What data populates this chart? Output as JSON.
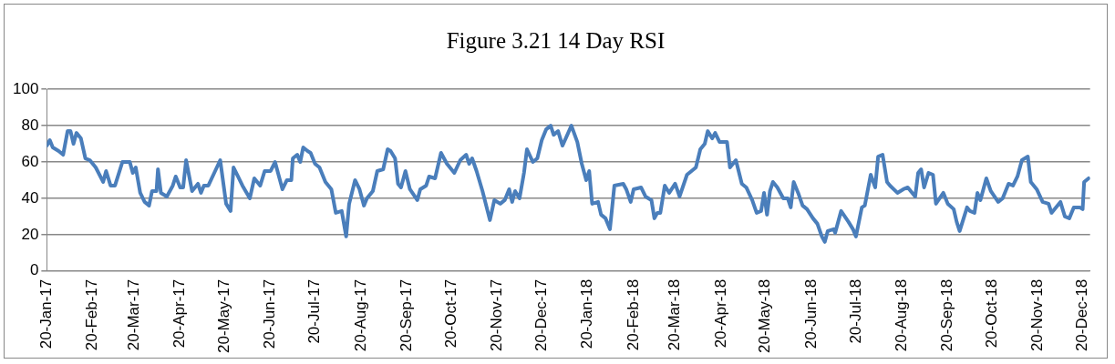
{
  "chart_data": {
    "type": "line",
    "title": "Figure 3.21 14 Day RSI",
    "x": [
      "2017-01-20",
      "2017-01-22",
      "2017-01-24",
      "2017-01-28",
      "2017-01-31",
      "2017-02-03",
      "2017-02-05",
      "2017-02-07",
      "2017-02-09",
      "2017-02-12",
      "2017-02-15",
      "2017-02-18",
      "2017-02-22",
      "2017-02-27",
      "2017-03-01",
      "2017-03-04",
      "2017-03-07",
      "2017-03-12",
      "2017-03-17",
      "2017-03-19",
      "2017-03-21",
      "2017-03-24",
      "2017-03-27",
      "2017-03-30",
      "2017-04-01",
      "2017-04-04",
      "2017-04-05",
      "2017-04-07",
      "2017-04-11",
      "2017-04-15",
      "2017-04-17",
      "2017-04-20",
      "2017-04-22",
      "2017-04-24",
      "2017-04-28",
      "2017-05-02",
      "2017-05-04",
      "2017-05-06",
      "2017-05-09",
      "2017-05-13",
      "2017-05-17",
      "2017-05-21",
      "2017-05-24",
      "2017-05-26",
      "2017-05-29",
      "2017-06-01",
      "2017-06-06",
      "2017-06-09",
      "2017-06-13",
      "2017-06-16",
      "2017-06-20",
      "2017-06-23",
      "2017-06-28",
      "2017-07-01",
      "2017-07-04",
      "2017-07-05",
      "2017-07-08",
      "2017-07-10",
      "2017-07-12",
      "2017-07-15",
      "2017-07-17",
      "2017-07-20",
      "2017-07-23",
      "2017-07-27",
      "2017-07-31",
      "2017-08-03",
      "2017-08-07",
      "2017-08-10",
      "2017-08-12",
      "2017-08-16",
      "2017-08-19",
      "2017-08-22",
      "2017-08-24",
      "2017-08-28",
      "2017-08-31",
      "2017-09-04",
      "2017-09-07",
      "2017-09-09",
      "2017-09-12",
      "2017-09-14",
      "2017-09-16",
      "2017-09-19",
      "2017-09-22",
      "2017-09-27",
      "2017-09-29",
      "2017-10-03",
      "2017-10-05",
      "2017-10-09",
      "2017-10-13",
      "2017-10-17",
      "2017-10-22",
      "2017-10-26",
      "2017-10-30",
      "2017-11-01",
      "2017-11-03",
      "2017-11-06",
      "2017-11-10",
      "2017-11-15",
      "2017-11-18",
      "2017-11-22",
      "2017-11-25",
      "2017-11-28",
      "2017-11-30",
      "2017-12-02",
      "2017-12-05",
      "2017-12-08",
      "2017-12-10",
      "2017-12-14",
      "2017-12-17",
      "2017-12-20",
      "2017-12-23",
      "2017-12-26",
      "2017-12-28",
      "2017-12-31",
      "2018-01-03",
      "2018-01-09",
      "2018-01-13",
      "2018-01-16",
      "2018-01-19",
      "2018-01-21",
      "2018-01-23",
      "2018-01-27",
      "2018-01-29",
      "2018-02-01",
      "2018-02-04",
      "2018-02-07",
      "2018-02-13",
      "2018-02-15",
      "2018-02-18",
      "2018-02-20",
      "2018-02-25",
      "2018-02-28",
      "2018-03-04",
      "2018-03-06",
      "2018-03-08",
      "2018-03-10",
      "2018-03-13",
      "2018-03-16",
      "2018-03-20",
      "2018-03-23",
      "2018-03-28",
      "2018-04-03",
      "2018-04-06",
      "2018-04-09",
      "2018-04-11",
      "2018-04-14",
      "2018-04-16",
      "2018-04-19",
      "2018-04-24",
      "2018-04-26",
      "2018-04-30",
      "2018-05-04",
      "2018-05-07",
      "2018-05-11",
      "2018-05-14",
      "2018-05-17",
      "2018-05-19",
      "2018-05-21",
      "2018-05-23",
      "2018-05-25",
      "2018-05-28",
      "2018-06-01",
      "2018-06-04",
      "2018-06-06",
      "2018-06-08",
      "2018-06-11",
      "2018-06-14",
      "2018-06-17",
      "2018-06-21",
      "2018-06-24",
      "2018-06-27",
      "2018-06-29",
      "2018-07-01",
      "2018-07-05",
      "2018-07-06",
      "2018-07-10",
      "2018-07-15",
      "2018-07-18",
      "2018-07-20",
      "2018-07-24",
      "2018-07-26",
      "2018-07-30",
      "2018-08-02",
      "2018-08-04",
      "2018-08-07",
      "2018-08-10",
      "2018-08-12",
      "2018-08-17",
      "2018-08-21",
      "2018-08-24",
      "2018-08-29",
      "2018-08-31",
      "2018-09-02",
      "2018-09-04",
      "2018-09-07",
      "2018-09-10",
      "2018-09-12",
      "2018-09-17",
      "2018-09-20",
      "2018-09-24",
      "2018-09-26",
      "2018-09-28",
      "2018-10-03",
      "2018-10-05",
      "2018-10-08",
      "2018-10-10",
      "2018-10-12",
      "2018-10-16",
      "2018-10-19",
      "2018-10-24",
      "2018-10-27",
      "2018-10-31",
      "2018-11-03",
      "2018-11-06",
      "2018-11-09",
      "2018-11-13",
      "2018-11-15",
      "2018-11-19",
      "2018-11-23",
      "2018-11-27",
      "2018-11-29",
      "2018-12-05",
      "2018-12-08",
      "2018-12-11",
      "2018-12-14",
      "2018-12-18",
      "2018-12-20",
      "2018-12-21",
      "2018-12-24"
    ],
    "values": [
      69,
      72,
      68,
      66,
      64,
      77,
      77,
      70,
      76,
      73,
      62,
      61,
      57,
      49,
      55,
      47,
      47,
      60,
      60,
      54,
      57,
      43,
      38,
      36,
      44,
      44,
      56,
      43,
      41,
      47,
      52,
      46,
      46,
      61,
      44,
      48,
      43,
      47,
      47,
      54,
      61,
      37,
      33,
      57,
      52,
      47,
      40,
      51,
      47,
      55,
      55,
      60,
      45,
      50,
      50,
      62,
      64,
      60,
      68,
      66,
      65,
      59,
      57,
      49,
      45,
      32,
      33,
      19,
      37,
      50,
      45,
      36,
      40,
      44,
      55,
      56,
      67,
      66,
      62,
      48,
      46,
      55,
      45,
      39,
      45,
      47,
      52,
      51,
      65,
      59,
      54,
      61,
      64,
      59,
      62,
      55,
      44,
      28,
      39,
      37,
      39,
      45,
      38,
      44,
      40,
      54,
      67,
      60,
      62,
      72,
      78,
      80,
      75,
      77,
      69,
      80,
      71,
      59,
      50,
      55,
      37,
      38,
      31,
      29,
      23,
      47,
      48,
      45,
      38,
      45,
      46,
      41,
      39,
      29,
      32,
      32,
      47,
      43,
      48,
      41,
      53,
      57,
      67,
      70,
      77,
      73,
      76,
      71,
      71,
      57,
      61,
      48,
      46,
      39,
      32,
      33,
      43,
      31,
      44,
      49,
      46,
      40,
      40,
      35,
      49,
      43,
      36,
      34,
      29,
      26,
      19,
      16,
      22,
      23,
      21,
      33,
      27,
      23,
      19,
      35,
      36,
      53,
      46,
      63,
      64,
      49,
      47,
      43,
      45,
      46,
      41,
      54,
      56,
      46,
      54,
      53,
      37,
      43,
      37,
      34,
      27,
      22,
      35,
      33,
      32,
      43,
      39,
      51,
      44,
      38,
      40,
      48,
      47,
      52,
      61,
      63,
      49,
      45,
      38,
      37,
      32,
      38,
      30,
      29,
      35,
      35,
      34,
      49,
      51
    ],
    "color": "#4a7ebb",
    "xlim": [
      "2017-01-20",
      "2018-12-25"
    ],
    "xticks": [
      {
        "value": "2017-01-20",
        "label": "20-Jan-17"
      },
      {
        "value": "2017-02-20",
        "label": "20-Feb-17"
      },
      {
        "value": "2017-03-20",
        "label": "20-Mar-17"
      },
      {
        "value": "2017-04-20",
        "label": "20-Apr-17"
      },
      {
        "value": "2017-05-20",
        "label": "20-May-17"
      },
      {
        "value": "2017-06-20",
        "label": "20-Jun-17"
      },
      {
        "value": "2017-07-20",
        "label": "20-Jul-17"
      },
      {
        "value": "2017-08-20",
        "label": "20-Aug-17"
      },
      {
        "value": "2017-09-20",
        "label": "20-Sep-17"
      },
      {
        "value": "2017-10-20",
        "label": "20-Oct-17"
      },
      {
        "value": "2017-11-20",
        "label": "20-Nov-17"
      },
      {
        "value": "2017-12-20",
        "label": "20-Dec-17"
      },
      {
        "value": "2018-01-20",
        "label": "20-Jan-18"
      },
      {
        "value": "2018-02-20",
        "label": "20-Feb-18"
      },
      {
        "value": "2018-03-20",
        "label": "20-Mar-18"
      },
      {
        "value": "2018-04-20",
        "label": "20-Apr-18"
      },
      {
        "value": "2018-05-20",
        "label": "20-May-18"
      },
      {
        "value": "2018-06-20",
        "label": "20-Jun-18"
      },
      {
        "value": "2018-07-20",
        "label": "20-Jul-18"
      },
      {
        "value": "2018-08-20",
        "label": "20-Aug-18"
      },
      {
        "value": "2018-09-20",
        "label": "20-Sep-18"
      },
      {
        "value": "2018-10-20",
        "label": "20-Oct-18"
      },
      {
        "value": "2018-11-20",
        "label": "20-Nov-18"
      },
      {
        "value": "2018-12-20",
        "label": "20-Dec-18"
      }
    ],
    "ylim": [
      0,
      100
    ],
    "yticks": [
      0,
      20,
      40,
      60,
      80,
      100
    ],
    "grid": "y",
    "legend": false,
    "marker": "none",
    "line_style": "solid"
  }
}
